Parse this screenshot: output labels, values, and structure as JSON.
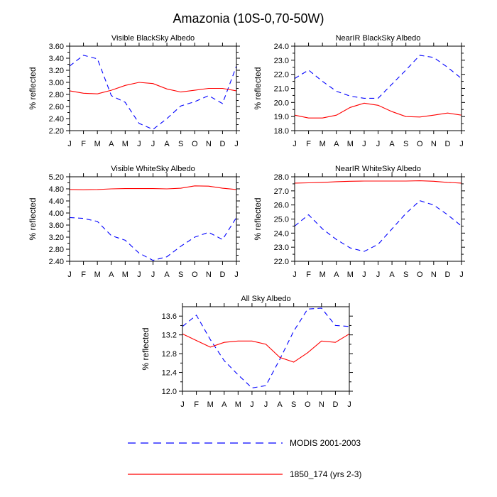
{
  "figure_title": "Amazonia (10S-0,70-50W)",
  "legend": [
    {
      "label": "MODIS 2001-2003",
      "color": "#0000ff",
      "dash": "dashed"
    },
    {
      "label": "1850_174 (yrs 2-3)",
      "color": "#ff0000",
      "dash": "solid"
    }
  ],
  "chart_data": [
    {
      "type": "line",
      "title": "Visible BlackSky Albedo",
      "xlabel": "",
      "ylabel": "% reflected",
      "categories": [
        "J",
        "F",
        "M",
        "A",
        "M",
        "J",
        "J",
        "A",
        "S",
        "O",
        "N",
        "D",
        "J"
      ],
      "ylim": [
        2.2,
        3.6
      ],
      "yticks": [
        "2.20",
        "2.40",
        "2.60",
        "2.80",
        "3.00",
        "3.20",
        "3.40",
        "3.60"
      ],
      "series": [
        {
          "name": "MODIS 2001-2003",
          "color": "#0000ff",
          "dash": "dashed",
          "values": [
            3.27,
            3.45,
            3.39,
            2.78,
            2.67,
            2.32,
            2.22,
            2.4,
            2.61,
            2.68,
            2.78,
            2.65,
            3.27
          ]
        },
        {
          "name": "1850_174 (yrs 2-3)",
          "color": "#ff0000",
          "dash": "solid",
          "values": [
            2.86,
            2.82,
            2.81,
            2.87,
            2.95,
            3.0,
            2.98,
            2.89,
            2.84,
            2.87,
            2.9,
            2.9,
            2.86
          ]
        }
      ]
    },
    {
      "type": "line",
      "title": "NearIR BlackSky Albedo",
      "xlabel": "",
      "ylabel": "% reflected",
      "categories": [
        "J",
        "F",
        "M",
        "A",
        "M",
        "J",
        "J",
        "A",
        "S",
        "O",
        "N",
        "D",
        "J"
      ],
      "ylim": [
        18.0,
        24.0
      ],
      "yticks": [
        "18.0",
        "19.0",
        "20.0",
        "21.0",
        "22.0",
        "23.0",
        "24.0"
      ],
      "series": [
        {
          "name": "MODIS 2001-2003",
          "color": "#0000ff",
          "dash": "dashed",
          "values": [
            21.7,
            22.3,
            21.5,
            20.8,
            20.45,
            20.3,
            20.3,
            21.3,
            22.3,
            23.35,
            23.2,
            22.5,
            21.7
          ]
        },
        {
          "name": "1850_174 (yrs 2-3)",
          "color": "#ff0000",
          "dash": "solid",
          "values": [
            19.1,
            18.9,
            18.9,
            19.1,
            19.65,
            19.95,
            19.8,
            19.35,
            19.0,
            18.97,
            19.1,
            19.25,
            19.1
          ]
        }
      ]
    },
    {
      "type": "line",
      "title": "Visible WhiteSky Albedo",
      "xlabel": "",
      "ylabel": "% reflected",
      "categories": [
        "J",
        "F",
        "M",
        "A",
        "M",
        "J",
        "J",
        "A",
        "S",
        "O",
        "N",
        "D",
        "J"
      ],
      "ylim": [
        2.4,
        5.2
      ],
      "yticks": [
        "2.40",
        "2.80",
        "3.20",
        "3.60",
        "4.00",
        "4.40",
        "4.80",
        "5.20"
      ],
      "series": [
        {
          "name": "MODIS 2001-2003",
          "color": "#0000ff",
          "dash": "dashed",
          "values": [
            3.85,
            3.82,
            3.72,
            3.25,
            3.1,
            2.67,
            2.43,
            2.55,
            2.9,
            3.2,
            3.36,
            3.12,
            3.85
          ]
        },
        {
          "name": "1850_174 (yrs 2-3)",
          "color": "#ff0000",
          "dash": "solid",
          "values": [
            4.78,
            4.77,
            4.78,
            4.8,
            4.81,
            4.81,
            4.81,
            4.8,
            4.82,
            4.9,
            4.89,
            4.82,
            4.78
          ]
        }
      ]
    },
    {
      "type": "line",
      "title": "NearIR WhiteSky Albedo",
      "xlabel": "",
      "ylabel": "% reflected",
      "categories": [
        "J",
        "F",
        "M",
        "A",
        "M",
        "J",
        "J",
        "A",
        "S",
        "O",
        "N",
        "D",
        "J"
      ],
      "ylim": [
        22.0,
        28.0
      ],
      "yticks": [
        "22.0",
        "23.0",
        "24.0",
        "25.0",
        "26.0",
        "27.0",
        "28.0"
      ],
      "series": [
        {
          "name": "MODIS 2001-2003",
          "color": "#0000ff",
          "dash": "dashed",
          "values": [
            24.5,
            25.3,
            24.3,
            23.55,
            22.95,
            22.7,
            23.2,
            24.3,
            25.4,
            26.3,
            26.0,
            25.3,
            24.5
          ]
        },
        {
          "name": "1850_174 (yrs 2-3)",
          "color": "#ff0000",
          "dash": "solid",
          "values": [
            27.55,
            27.57,
            27.6,
            27.65,
            27.68,
            27.7,
            27.7,
            27.7,
            27.7,
            27.72,
            27.68,
            27.6,
            27.55
          ]
        }
      ]
    },
    {
      "type": "line",
      "title": "All Sky Albedo",
      "xlabel": "",
      "ylabel": "% reflected",
      "categories": [
        "J",
        "F",
        "M",
        "A",
        "M",
        "J",
        "J",
        "A",
        "S",
        "O",
        "N",
        "D",
        "J"
      ],
      "ylim": [
        12.0,
        13.8
      ],
      "yticks": [
        "12.0",
        "12.4",
        "12.8",
        "13.2",
        "13.6"
      ],
      "series": [
        {
          "name": "MODIS 2001-2003",
          "color": "#0000ff",
          "dash": "dashed",
          "values": [
            13.38,
            13.62,
            13.1,
            12.65,
            12.35,
            12.07,
            12.12,
            12.68,
            13.28,
            13.75,
            13.77,
            13.4,
            13.38
          ]
        },
        {
          "name": "1850_174 (yrs 2-3)",
          "color": "#ff0000",
          "dash": "solid",
          "values": [
            13.22,
            13.08,
            12.94,
            13.04,
            13.07,
            13.07,
            13.0,
            12.72,
            12.62,
            12.82,
            13.07,
            13.04,
            13.22
          ]
        }
      ]
    }
  ]
}
